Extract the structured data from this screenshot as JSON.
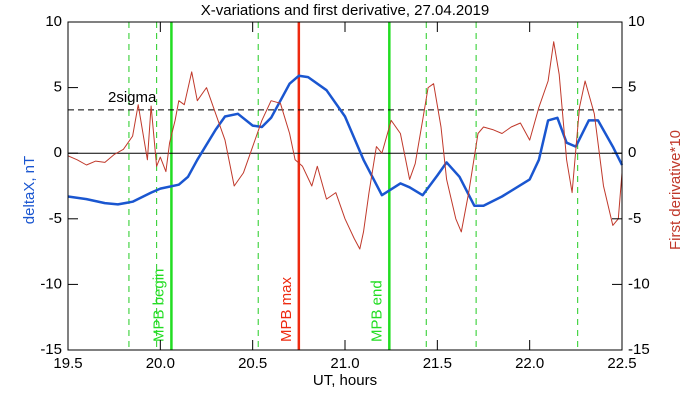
{
  "chart_data": {
    "type": "line",
    "title": "X-variations and first derivative, 27.04.2019",
    "x_label": "UT, hours",
    "y_label": "deltaX, nT",
    "y2_label": "First derivative*10",
    "xlim": [
      19.5,
      22.5
    ],
    "ylim": [
      -15,
      10
    ],
    "y2lim": [
      -15,
      10
    ],
    "xticks": [
      19.5,
      {
        "value": 20,
        "label": "20.0"
      },
      20.5,
      {
        "value": 21,
        "label": "21.0"
      },
      21.5,
      {
        "value": 22,
        "label": "22.0"
      },
      22.5
    ],
    "yticks": [
      -15,
      -10,
      -5,
      0,
      5,
      10
    ],
    "y2ticks": [
      -15,
      -10,
      -5,
      0,
      5,
      10
    ],
    "series": [
      {
        "name": "deltaX, nT",
        "color": "#1a56d0",
        "x": [
          19.5,
          19.6,
          19.7,
          19.77,
          19.85,
          19.95,
          20.0,
          20.1,
          20.15,
          20.2,
          20.3,
          20.35,
          20.42,
          20.5,
          20.55,
          20.6,
          20.65,
          20.7,
          20.75,
          20.8,
          20.9,
          21.0,
          21.1,
          21.2,
          21.3,
          21.35,
          21.42,
          21.5,
          21.55,
          21.62,
          21.7,
          21.75,
          21.85,
          22.0,
          22.05,
          22.1,
          22.15,
          22.2,
          22.25,
          22.32,
          22.37,
          22.45,
          22.5
        ],
        "values": [
          -3.3,
          -3.5,
          -3.8,
          -3.9,
          -3.7,
          -3.0,
          -2.7,
          -2.4,
          -1.8,
          -0.5,
          1.8,
          2.8,
          3.0,
          2.1,
          2.0,
          2.7,
          4.0,
          5.3,
          5.9,
          5.8,
          4.8,
          2.8,
          -0.5,
          -3.2,
          -2.3,
          -2.6,
          -3.2,
          -1.7,
          -0.7,
          -1.8,
          -4.0,
          -4.0,
          -3.3,
          -2.0,
          -0.5,
          2.5,
          2.7,
          0.8,
          0.5,
          2.5,
          2.5,
          0.5,
          -0.9
        ]
      },
      {
        "name": "First derivative*10",
        "color": "#c0392b",
        "axis": "y2",
        "x": [
          19.5,
          19.55,
          19.6,
          19.65,
          19.7,
          19.75,
          19.8,
          19.85,
          19.88,
          19.9,
          19.93,
          19.95,
          19.98,
          20.0,
          20.03,
          20.05,
          20.08,
          20.1,
          20.13,
          20.17,
          20.2,
          20.25,
          20.3,
          20.35,
          20.4,
          20.45,
          20.5,
          20.55,
          20.6,
          20.65,
          20.7,
          20.73,
          20.77,
          20.82,
          20.85,
          20.9,
          20.95,
          21.0,
          21.05,
          21.08,
          21.1,
          21.13,
          21.17,
          21.2,
          21.25,
          21.3,
          21.35,
          21.38,
          21.42,
          21.45,
          21.48,
          21.52,
          21.55,
          21.6,
          21.63,
          21.67,
          21.72,
          21.75,
          21.8,
          21.85,
          21.9,
          21.95,
          22.0,
          22.05,
          22.1,
          22.13,
          22.16,
          22.2,
          22.23,
          22.27,
          22.3,
          22.35,
          22.4,
          22.45,
          22.48,
          22.5
        ],
        "values": [
          -0.2,
          -0.5,
          -0.9,
          -0.6,
          -0.7,
          -0.1,
          0.3,
          1.3,
          3.7,
          2.0,
          -0.5,
          3.6,
          -1.0,
          -0.3,
          -1.4,
          0.8,
          2.5,
          4.0,
          3.7,
          6.2,
          4.0,
          5.0,
          3.0,
          1.0,
          -2.5,
          -1.5,
          0.5,
          2.5,
          4.0,
          3.8,
          1.5,
          -0.5,
          -1.0,
          -2.5,
          -1.0,
          -3.5,
          -3.0,
          -5.0,
          -6.5,
          -7.3,
          -6.0,
          -3.0,
          0.5,
          0.0,
          2.5,
          1.5,
          -2.0,
          -0.8,
          2.5,
          5.0,
          5.3,
          2.0,
          -2.0,
          -5.0,
          -6.0,
          -3.0,
          1.5,
          2.0,
          1.8,
          1.5,
          2.0,
          2.3,
          1.0,
          3.5,
          5.5,
          8.5,
          6.0,
          -0.5,
          -3.0,
          3.5,
          5.5,
          3.0,
          -2.5,
          -5.5,
          -5.0,
          -1.5
        ]
      }
    ],
    "hlines": [
      {
        "value": 0,
        "style": "solid",
        "color": "#000000"
      },
      {
        "value": 3.3,
        "style": "dashed",
        "color": "#000000",
        "label": "2sigma"
      }
    ],
    "vlines": [
      {
        "value": 19.83,
        "style": "dashed",
        "color": "#22cc22"
      },
      {
        "value": 19.98,
        "style": "dashed",
        "color": "#22cc22"
      },
      {
        "value": 20.53,
        "style": "dashed",
        "color": "#22cc22"
      },
      {
        "value": 21.44,
        "style": "dashed",
        "color": "#22cc22"
      },
      {
        "value": 21.71,
        "style": "dashed",
        "color": "#22cc22"
      },
      {
        "value": 22.26,
        "style": "dashed",
        "color": "#22cc22"
      },
      {
        "value": 20.06,
        "style": "solid",
        "color": "#22dd22",
        "label": "MPB begin"
      },
      {
        "value": 20.75,
        "style": "solid",
        "color": "#ee2a10",
        "label": "MPB max"
      },
      {
        "value": 21.24,
        "style": "solid",
        "color": "#22dd22",
        "label": "MPB end"
      }
    ]
  }
}
